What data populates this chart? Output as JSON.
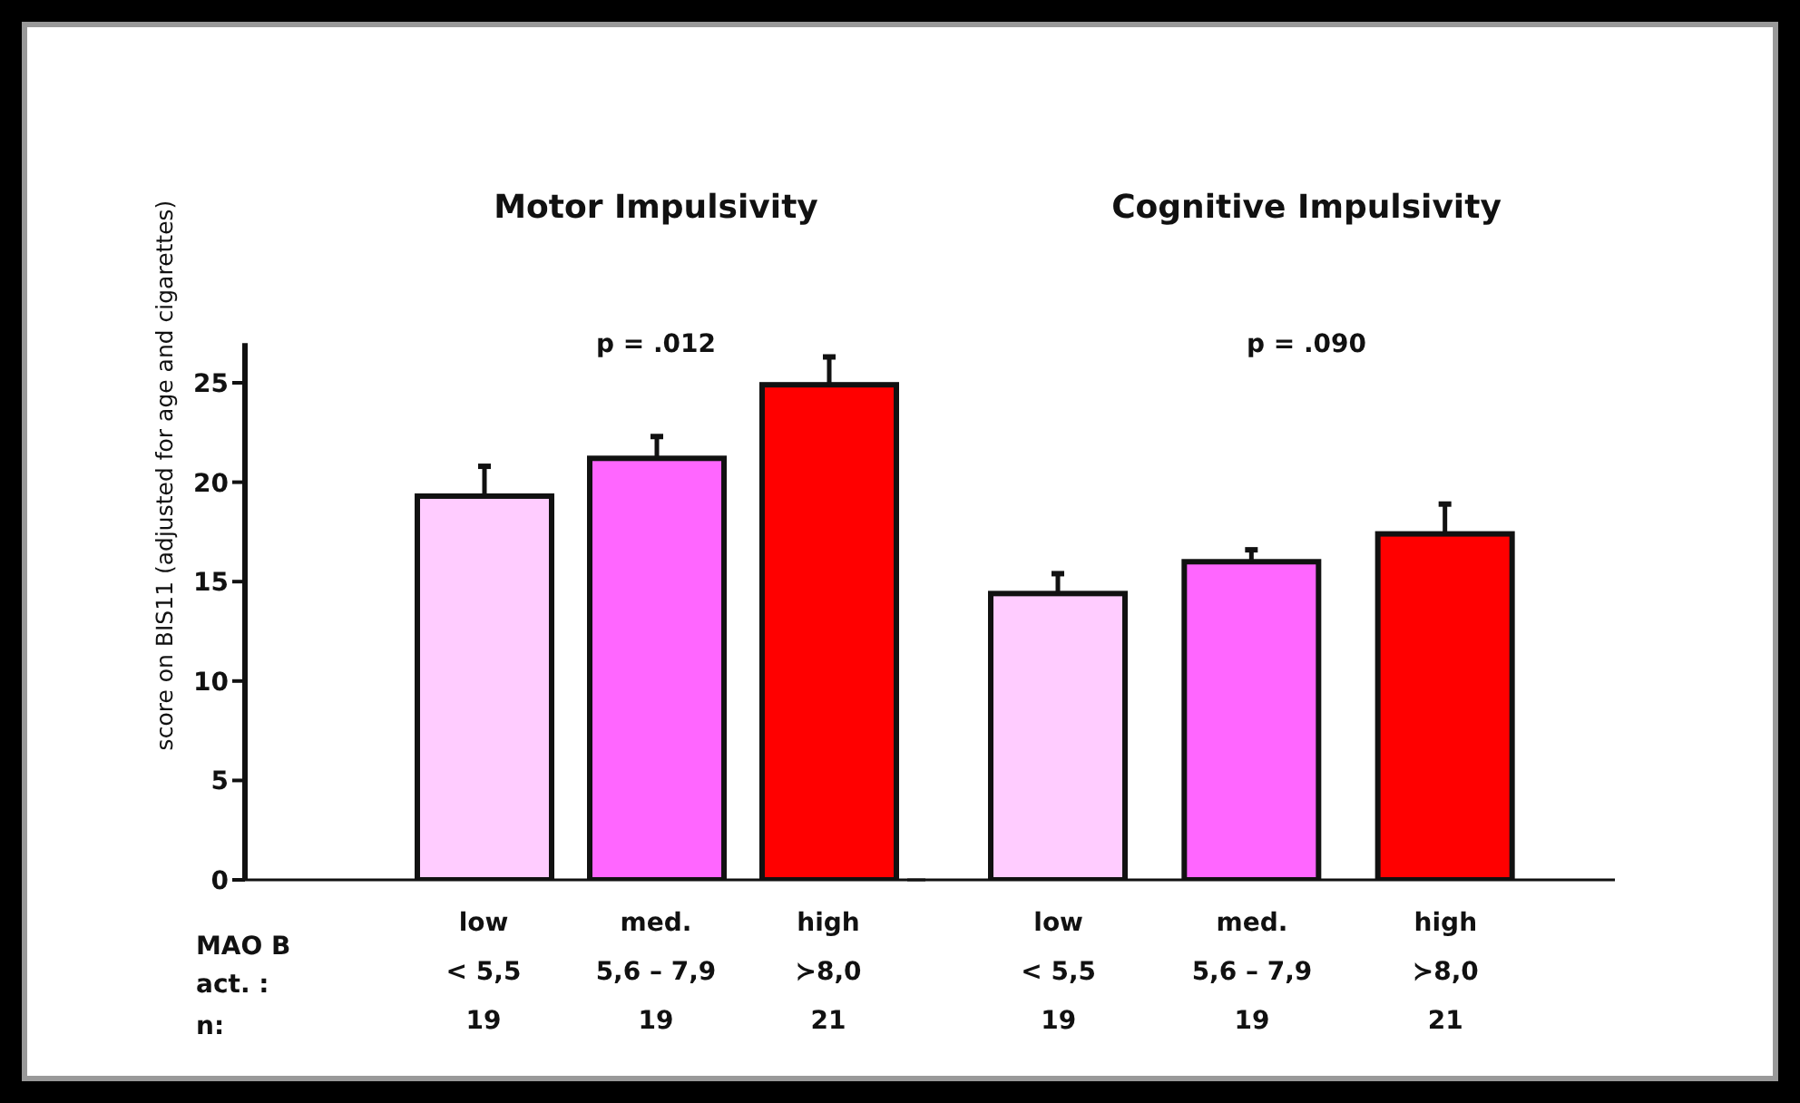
{
  "chart_data": [
    {
      "type": "bar",
      "title": "Motor Impulsivity",
      "ylabel": "score on BIS11 (adjusted for age and cigarettes)",
      "categories": [
        "low\n< 5,5\n19",
        "med.\n5,6 – 7,9\n19",
        "high\n≻8,0\n21"
      ],
      "values": [
        19.3,
        21.2,
        24.9
      ],
      "errors": [
        1.5,
        1.1,
        1.4
      ],
      "colors": [
        "#ffccff",
        "#ff66ff",
        "#ff0000"
      ],
      "ylim": [
        0,
        27
      ],
      "yticks": [
        0,
        5,
        10,
        15,
        20,
        25
      ],
      "grid": false,
      "legend": false,
      "annotations": [
        "p = .012",
        "MAO B",
        "act. :",
        "n:"
      ]
    },
    {
      "type": "bar",
      "title": "Cognitive Impulsivity",
      "categories": [
        "low\n< 5,5\n19",
        "med.\n5,6 – 7,9\n19",
        "high\n≻8,0\n21"
      ],
      "values": [
        14.4,
        16.0,
        17.4
      ],
      "errors": [
        1.0,
        0.6,
        1.5
      ],
      "colors": [
        "#ffccff",
        "#ff66ff",
        "#ff0000"
      ],
      "ylim": [
        0,
        25
      ],
      "yticks": [
        0,
        5,
        10,
        15,
        20,
        25
      ],
      "tick_labels": "x",
      "grid": false,
      "legend": false,
      "annotations": [
        "p = .090"
      ]
    }
  ]
}
